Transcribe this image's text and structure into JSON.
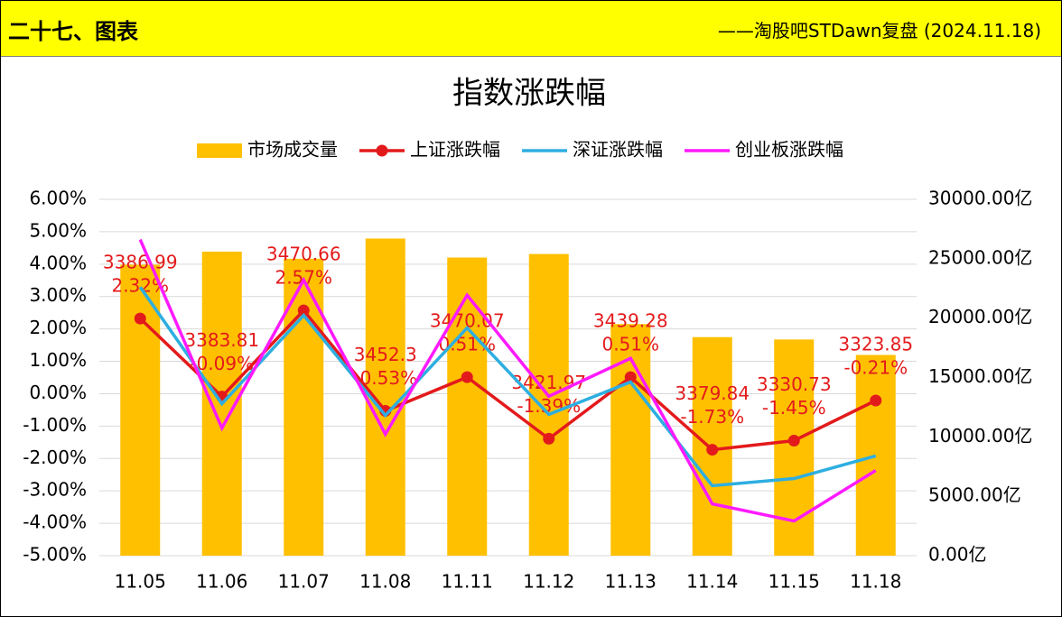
{
  "header": {
    "title": "二十七、图表",
    "source": "——淘股吧STDawn复盘 (2024.11.18)"
  },
  "chart_data": {
    "type": "combo",
    "title": "指数涨跌幅",
    "categories": [
      "11.05",
      "11.06",
      "11.07",
      "11.08",
      "11.11",
      "11.12",
      "11.13",
      "11.14",
      "11.15",
      "11.18"
    ],
    "series": [
      {
        "name": "市场成交量",
        "type": "bar",
        "axis": "y2",
        "color": "#ffc000",
        "values": [
          24500,
          25600,
          25000,
          26700,
          25100,
          25400,
          19500,
          18400,
          18200,
          16900
        ]
      },
      {
        "name": "上证涨跌幅",
        "type": "line",
        "markers": true,
        "color": "#e31a1c",
        "values": [
          2.32,
          -0.09,
          2.57,
          -0.53,
          0.51,
          -1.39,
          0.51,
          -1.73,
          -1.45,
          -0.21
        ],
        "value_labels": [
          "2.32%",
          "-0.09%",
          "2.57%",
          "-0.53%",
          "0.51%",
          "-1.39%",
          "0.51%",
          "-1.73%",
          "-1.45%",
          "-0.21%"
        ],
        "closes": [
          3386.99,
          3383.81,
          3470.66,
          3452.3,
          3470.07,
          3421.97,
          3439.28,
          3379.84,
          3330.73,
          3323.85
        ]
      },
      {
        "name": "深证涨跌幅",
        "type": "line",
        "color": "#2eaee0",
        "values": [
          3.29,
          -0.31,
          2.42,
          -0.67,
          2.03,
          -0.64,
          0.36,
          -2.84,
          -2.62,
          -1.92
        ]
      },
      {
        "name": "创业板涨跌幅",
        "type": "line",
        "color": "#ff1aff",
        "values": [
          4.76,
          -1.06,
          3.51,
          -1.25,
          3.04,
          -0.08,
          1.09,
          -3.4,
          -3.93,
          -2.37
        ]
      }
    ],
    "ylim": [
      -5,
      6
    ],
    "yticks": [
      {
        "value": 6,
        "label": "6.00%"
      },
      {
        "value": 5,
        "label": "5.00%"
      },
      {
        "value": 4,
        "label": "4.00%"
      },
      {
        "value": 3,
        "label": "3.00%"
      },
      {
        "value": 2,
        "label": "2.00%"
      },
      {
        "value": 1,
        "label": "1.00%"
      },
      {
        "value": 0,
        "label": "0.00%"
      },
      {
        "value": -1,
        "label": "-1.00%"
      },
      {
        "value": -2,
        "label": "-2.00%"
      },
      {
        "value": -3,
        "label": "-3.00%"
      },
      {
        "value": -4,
        "label": "-4.00%"
      },
      {
        "value": -5,
        "label": "-5.00%"
      }
    ],
    "y2lim": [
      0,
      30000
    ],
    "y2ticks": [
      {
        "value": 30000,
        "label": "30000.00亿"
      },
      {
        "value": 25000,
        "label": "25000.00亿"
      },
      {
        "value": 20000,
        "label": "20000.00亿"
      },
      {
        "value": 15000,
        "label": "15000.00亿"
      },
      {
        "value": 10000,
        "label": "10000.00亿"
      },
      {
        "value": 5000,
        "label": "5000.00亿"
      },
      {
        "value": 0,
        "label": "0.00亿"
      }
    ],
    "grid": true,
    "legend": "top"
  }
}
